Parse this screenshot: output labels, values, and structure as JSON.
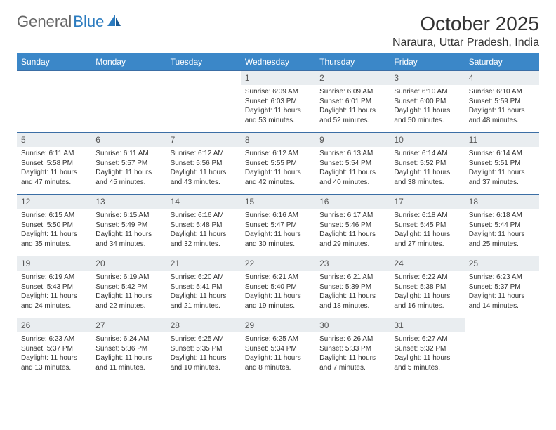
{
  "logo": {
    "part1": "General",
    "part2": "Blue"
  },
  "title": "October 2025",
  "location": "Naraura, Uttar Pradesh, India",
  "colors": {
    "header_bg": "#3b87c8",
    "header_text": "#ffffff",
    "daynum_bg": "#e9edf0",
    "row_border": "#3b6ea5",
    "logo_gray": "#666666",
    "logo_blue": "#2b7bbf",
    "text": "#333333"
  },
  "typography": {
    "title_fontsize": 28,
    "location_fontsize": 16,
    "header_fontsize": 12,
    "daynum_fontsize": 12,
    "body_fontsize": 10
  },
  "weekdays": [
    "Sunday",
    "Monday",
    "Tuesday",
    "Wednesday",
    "Thursday",
    "Friday",
    "Saturday"
  ],
  "weeks": [
    [
      {
        "n": "",
        "sr": "",
        "ss": "",
        "dl": ""
      },
      {
        "n": "",
        "sr": "",
        "ss": "",
        "dl": ""
      },
      {
        "n": "",
        "sr": "",
        "ss": "",
        "dl": ""
      },
      {
        "n": "1",
        "sr": "Sunrise: 6:09 AM",
        "ss": "Sunset: 6:03 PM",
        "dl": "Daylight: 11 hours and 53 minutes."
      },
      {
        "n": "2",
        "sr": "Sunrise: 6:09 AM",
        "ss": "Sunset: 6:01 PM",
        "dl": "Daylight: 11 hours and 52 minutes."
      },
      {
        "n": "3",
        "sr": "Sunrise: 6:10 AM",
        "ss": "Sunset: 6:00 PM",
        "dl": "Daylight: 11 hours and 50 minutes."
      },
      {
        "n": "4",
        "sr": "Sunrise: 6:10 AM",
        "ss": "Sunset: 5:59 PM",
        "dl": "Daylight: 11 hours and 48 minutes."
      }
    ],
    [
      {
        "n": "5",
        "sr": "Sunrise: 6:11 AM",
        "ss": "Sunset: 5:58 PM",
        "dl": "Daylight: 11 hours and 47 minutes."
      },
      {
        "n": "6",
        "sr": "Sunrise: 6:11 AM",
        "ss": "Sunset: 5:57 PM",
        "dl": "Daylight: 11 hours and 45 minutes."
      },
      {
        "n": "7",
        "sr": "Sunrise: 6:12 AM",
        "ss": "Sunset: 5:56 PM",
        "dl": "Daylight: 11 hours and 43 minutes."
      },
      {
        "n": "8",
        "sr": "Sunrise: 6:12 AM",
        "ss": "Sunset: 5:55 PM",
        "dl": "Daylight: 11 hours and 42 minutes."
      },
      {
        "n": "9",
        "sr": "Sunrise: 6:13 AM",
        "ss": "Sunset: 5:54 PM",
        "dl": "Daylight: 11 hours and 40 minutes."
      },
      {
        "n": "10",
        "sr": "Sunrise: 6:14 AM",
        "ss": "Sunset: 5:52 PM",
        "dl": "Daylight: 11 hours and 38 minutes."
      },
      {
        "n": "11",
        "sr": "Sunrise: 6:14 AM",
        "ss": "Sunset: 5:51 PM",
        "dl": "Daylight: 11 hours and 37 minutes."
      }
    ],
    [
      {
        "n": "12",
        "sr": "Sunrise: 6:15 AM",
        "ss": "Sunset: 5:50 PM",
        "dl": "Daylight: 11 hours and 35 minutes."
      },
      {
        "n": "13",
        "sr": "Sunrise: 6:15 AM",
        "ss": "Sunset: 5:49 PM",
        "dl": "Daylight: 11 hours and 34 minutes."
      },
      {
        "n": "14",
        "sr": "Sunrise: 6:16 AM",
        "ss": "Sunset: 5:48 PM",
        "dl": "Daylight: 11 hours and 32 minutes."
      },
      {
        "n": "15",
        "sr": "Sunrise: 6:16 AM",
        "ss": "Sunset: 5:47 PM",
        "dl": "Daylight: 11 hours and 30 minutes."
      },
      {
        "n": "16",
        "sr": "Sunrise: 6:17 AM",
        "ss": "Sunset: 5:46 PM",
        "dl": "Daylight: 11 hours and 29 minutes."
      },
      {
        "n": "17",
        "sr": "Sunrise: 6:18 AM",
        "ss": "Sunset: 5:45 PM",
        "dl": "Daylight: 11 hours and 27 minutes."
      },
      {
        "n": "18",
        "sr": "Sunrise: 6:18 AM",
        "ss": "Sunset: 5:44 PM",
        "dl": "Daylight: 11 hours and 25 minutes."
      }
    ],
    [
      {
        "n": "19",
        "sr": "Sunrise: 6:19 AM",
        "ss": "Sunset: 5:43 PM",
        "dl": "Daylight: 11 hours and 24 minutes."
      },
      {
        "n": "20",
        "sr": "Sunrise: 6:19 AM",
        "ss": "Sunset: 5:42 PM",
        "dl": "Daylight: 11 hours and 22 minutes."
      },
      {
        "n": "21",
        "sr": "Sunrise: 6:20 AM",
        "ss": "Sunset: 5:41 PM",
        "dl": "Daylight: 11 hours and 21 minutes."
      },
      {
        "n": "22",
        "sr": "Sunrise: 6:21 AM",
        "ss": "Sunset: 5:40 PM",
        "dl": "Daylight: 11 hours and 19 minutes."
      },
      {
        "n": "23",
        "sr": "Sunrise: 6:21 AM",
        "ss": "Sunset: 5:39 PM",
        "dl": "Daylight: 11 hours and 18 minutes."
      },
      {
        "n": "24",
        "sr": "Sunrise: 6:22 AM",
        "ss": "Sunset: 5:38 PM",
        "dl": "Daylight: 11 hours and 16 minutes."
      },
      {
        "n": "25",
        "sr": "Sunrise: 6:23 AM",
        "ss": "Sunset: 5:37 PM",
        "dl": "Daylight: 11 hours and 14 minutes."
      }
    ],
    [
      {
        "n": "26",
        "sr": "Sunrise: 6:23 AM",
        "ss": "Sunset: 5:37 PM",
        "dl": "Daylight: 11 hours and 13 minutes."
      },
      {
        "n": "27",
        "sr": "Sunrise: 6:24 AM",
        "ss": "Sunset: 5:36 PM",
        "dl": "Daylight: 11 hours and 11 minutes."
      },
      {
        "n": "28",
        "sr": "Sunrise: 6:25 AM",
        "ss": "Sunset: 5:35 PM",
        "dl": "Daylight: 11 hours and 10 minutes."
      },
      {
        "n": "29",
        "sr": "Sunrise: 6:25 AM",
        "ss": "Sunset: 5:34 PM",
        "dl": "Daylight: 11 hours and 8 minutes."
      },
      {
        "n": "30",
        "sr": "Sunrise: 6:26 AM",
        "ss": "Sunset: 5:33 PM",
        "dl": "Daylight: 11 hours and 7 minutes."
      },
      {
        "n": "31",
        "sr": "Sunrise: 6:27 AM",
        "ss": "Sunset: 5:32 PM",
        "dl": "Daylight: 11 hours and 5 minutes."
      },
      {
        "n": "",
        "sr": "",
        "ss": "",
        "dl": ""
      }
    ]
  ]
}
